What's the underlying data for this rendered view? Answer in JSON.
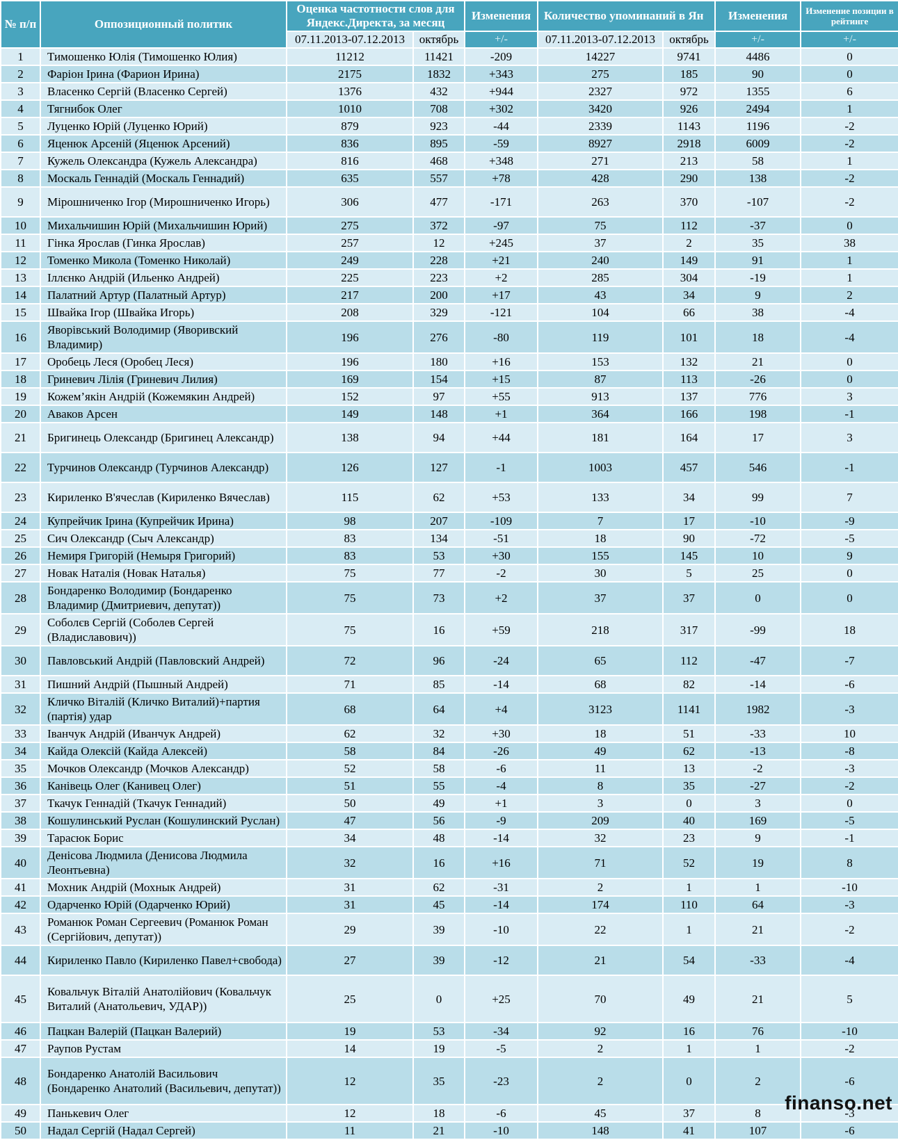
{
  "colors": {
    "header_bg": "#48a5be",
    "row_light": "#d9ecf4",
    "row_dark": "#b9dde9",
    "header_text": "#ffffff",
    "body_text": "#000000"
  },
  "watermark": "finanso.net",
  "header": {
    "rank": "№ п/п",
    "politician": "Оппозиционный политик",
    "freq_group": "Оценка частотности слов для Яндекс.Директа, за месяц",
    "changes_a": "Изменения",
    "mentions_group": "Количество упоминаний в Ян",
    "changes_b": "Изменения",
    "rating_group": "Изменение позиции в рейтинге",
    "period_a": "07.11.2013-07.12.2013",
    "october_a": "октябрь",
    "pm_a": "+/-",
    "period_b": "07.11.2013-07.12.2013",
    "october_b": "октябрь",
    "pm_b": "+/-",
    "pm_c": "+/-"
  },
  "rows": [
    {
      "n": "1",
      "name": "Тимошенко Юлія (Тимошенко Юлия)",
      "cells": [
        "11212",
        "11421",
        "-209",
        "14227",
        "9741",
        "4486",
        "0"
      ]
    },
    {
      "n": "2",
      "name": "Фаріон Ірина (Фарион Ирина)",
      "cells": [
        "2175",
        "1832",
        "+343",
        "275",
        "185",
        "90",
        "0"
      ]
    },
    {
      "n": "3",
      "name": "Власенко Сергій (Власенко Сергей)",
      "cells": [
        "1376",
        "432",
        "+944",
        "2327",
        "972",
        "1355",
        "6"
      ]
    },
    {
      "n": "4",
      "name": "Тягнибок Олег",
      "cells": [
        "1010",
        "708",
        "+302",
        "3420",
        "926",
        "2494",
        "1"
      ]
    },
    {
      "n": "5",
      "name": "Луценко Юрій (Луценко Юрий)",
      "cells": [
        "879",
        "923",
        "-44",
        "2339",
        "1143",
        "1196",
        "-2"
      ]
    },
    {
      "n": "6",
      "name": "Яценюк Арсеній (Яценюк Арсений)",
      "cells": [
        "836",
        "895",
        "-59",
        "8927",
        "2918",
        "6009",
        "-2"
      ]
    },
    {
      "n": "7",
      "name": "Кужель Олександра (Кужель Александра)",
      "cells": [
        "816",
        "468",
        "+348",
        "271",
        "213",
        "58",
        "1"
      ]
    },
    {
      "n": "8",
      "name": "Москаль Геннадій (Москаль Геннадий)",
      "cells": [
        "635",
        "557",
        "+78",
        "428",
        "290",
        "138",
        "-2"
      ]
    },
    {
      "n": "9",
      "name": "Мірошниченко Ігор (Мирошниченко Игорь)",
      "cells": [
        "306",
        "477",
        "-171",
        "263",
        "370",
        "-107",
        "-2"
      ],
      "tall": 1
    },
    {
      "n": "10",
      "name": "Михальчишин Юрій (Михальчишин Юрий)",
      "cells": [
        "275",
        "372",
        "-97",
        "75",
        "112",
        "-37",
        "0"
      ]
    },
    {
      "n": "11",
      "name": "Гінка Ярослав (Гинка Ярослав)",
      "cells": [
        "257",
        "12",
        "+245",
        "37",
        "2",
        "35",
        "38"
      ]
    },
    {
      "n": "12",
      "name": "Томенко Микола  (Томенко Николай)",
      "cells": [
        "249",
        "228",
        "+21",
        "240",
        "149",
        "91",
        "1"
      ]
    },
    {
      "n": "13",
      "name": "Іллєнко Андрій (Ильенко Андрей)",
      "cells": [
        "225",
        "223",
        "+2",
        "285",
        "304",
        "-19",
        "1"
      ]
    },
    {
      "n": "14",
      "name": "Палатний Артур (Палатный Артур)",
      "cells": [
        "217",
        "200",
        "+17",
        "43",
        "34",
        "9",
        "2"
      ]
    },
    {
      "n": "15",
      "name": "Швайка Ігор (Швайка Игорь)",
      "cells": [
        "208",
        "329",
        "-121",
        "104",
        "66",
        "38",
        "-4"
      ]
    },
    {
      "n": "16",
      "name": "Яворівський Володимир (Яворивский Владимир)",
      "cells": [
        "196",
        "276",
        "-80",
        "119",
        "101",
        "18",
        "-4"
      ]
    },
    {
      "n": "17",
      "name": "Оробець Леся  (Оробец Леся)",
      "cells": [
        "196",
        "180",
        "+16",
        "153",
        "132",
        "21",
        "0"
      ]
    },
    {
      "n": "18",
      "name": "Гриневич Лілія (Гриневич Лилия)",
      "cells": [
        "169",
        "154",
        "+15",
        "87",
        "113",
        "-26",
        "0"
      ]
    },
    {
      "n": "19",
      "name": "Кожем’якін Андрій (Кожемякин Андрей)",
      "cells": [
        "152",
        "97",
        "+55",
        "913",
        "137",
        "776",
        "3"
      ]
    },
    {
      "n": "20",
      "name": "Аваков Арсен",
      "cells": [
        "149",
        "148",
        "+1",
        "364",
        "166",
        "198",
        "-1"
      ]
    },
    {
      "n": "21",
      "name": "Бригинець Олександр (Бригинец Александр)",
      "cells": [
        "138",
        "94",
        "+44",
        "181",
        "164",
        "17",
        "3"
      ],
      "tall": 1
    },
    {
      "n": "22",
      "name": "Турчинов Олександр (Турчинов Александр)",
      "cells": [
        "126",
        "127",
        "-1",
        "1003",
        "457",
        "546",
        "-1"
      ],
      "tall": 1
    },
    {
      "n": "23",
      "name": "Кириленко В'ячеслав (Кириленко Вячеслав)",
      "cells": [
        "115",
        "62",
        "+53",
        "133",
        "34",
        "99",
        "7"
      ],
      "tall": 1
    },
    {
      "n": "24",
      "name": "Купрейчик Ірина (Купрейчик Ирина)",
      "cells": [
        "98",
        "207",
        "-109",
        "7",
        "17",
        "-10",
        "-9"
      ]
    },
    {
      "n": "25",
      "name": "Сич Олександр (Сыч Александр)",
      "cells": [
        "83",
        "134",
        "-51",
        "18",
        "90",
        "-72",
        "-5"
      ]
    },
    {
      "n": "26",
      "name": "Немиря Григорій (Немыря Григорий)",
      "cells": [
        "83",
        "53",
        "+30",
        "155",
        "145",
        "10",
        "9"
      ]
    },
    {
      "n": "27",
      "name": "Новак Наталія (Новак Наталья)",
      "cells": [
        "75",
        "77",
        "-2",
        "30",
        "5",
        "25",
        "0"
      ]
    },
    {
      "n": "28",
      "name": "Бондаренко Володимир  (Бондаренко Владимир (Дмитриевич, депутат))",
      "cells": [
        "75",
        "73",
        "+2",
        "37",
        "37",
        "0",
        "0"
      ]
    },
    {
      "n": "29",
      "name": "Соболєв Сергій  (Соболев Сергей (Владиславович))",
      "cells": [
        "75",
        "16",
        "+59",
        "218",
        "317",
        "-99",
        "18"
      ]
    },
    {
      "n": "30",
      "name": "Павловський Андрій  (Павловский Андрей)",
      "cells": [
        "72",
        "96",
        "-24",
        "65",
        "112",
        "-47",
        "-7"
      ],
      "tall": 1
    },
    {
      "n": "31",
      "name": "Пишний Андрій (Пышный Андрей)",
      "cells": [
        "71",
        "85",
        "-14",
        "68",
        "82",
        "-14",
        "-6"
      ]
    },
    {
      "n": "32",
      "name": "Кличко Віталій (Кличко Виталий)+партия (партія) удар",
      "cells": [
        "68",
        "64",
        "+4",
        "3123",
        "1141",
        "1982",
        "-3"
      ]
    },
    {
      "n": "33",
      "name": "Іванчук Андрій  (Иванчук Андрей)",
      "cells": [
        "62",
        "32",
        "+30",
        "18",
        "51",
        "-33",
        "10"
      ]
    },
    {
      "n": "34",
      "name": "Кайда Олексій (Кайда Алексей)",
      "cells": [
        "58",
        "84",
        "-26",
        "49",
        "62",
        "-13",
        "-8"
      ]
    },
    {
      "n": "35",
      "name": "Мочков Олександр (Мочков Александр)",
      "cells": [
        "52",
        "58",
        "-6",
        "11",
        "13",
        "-2",
        "-3"
      ]
    },
    {
      "n": "36",
      "name": "Канівець Олег (Канивец Олег)",
      "cells": [
        "51",
        "55",
        "-4",
        "8",
        "35",
        "-27",
        "-2"
      ]
    },
    {
      "n": "37",
      "name": "Ткачук Геннадій (Ткачук Геннадий)",
      "cells": [
        "50",
        "49",
        "+1",
        "3",
        "0",
        "3",
        "0"
      ]
    },
    {
      "n": "38",
      "name": "Кошулинський Руслан (Кошулинский Руслан)",
      "cells": [
        "47",
        "56",
        "-9",
        "209",
        "40",
        "169",
        "-5"
      ]
    },
    {
      "n": "39",
      "name": "Тарасюк Борис",
      "cells": [
        "34",
        "48",
        "-14",
        "32",
        "23",
        "9",
        "-1"
      ]
    },
    {
      "n": "40",
      "name": "Денісова Людмила (Денисова Людмила Леонтьевна)",
      "cells": [
        "32",
        "16",
        "+16",
        "71",
        "52",
        "19",
        "8"
      ]
    },
    {
      "n": "41",
      "name": "Мохник Андрій (Мохнык Андрей)",
      "cells": [
        "31",
        "62",
        "-31",
        "2",
        "1",
        "1",
        "-10"
      ]
    },
    {
      "n": "42",
      "name": "Одарченко Юрій (Одарченко Юрий)",
      "cells": [
        "31",
        "45",
        "-14",
        "174",
        "110",
        "64",
        "-3"
      ]
    },
    {
      "n": "43",
      "name": "Романюк Роман Сергеевич (Романюк Роман (Сергійович, депутат))",
      "cells": [
        "29",
        "39",
        "-10",
        "22",
        "1",
        "21",
        "-2"
      ]
    },
    {
      "n": "44",
      "name": "Кириленко Павло (Кириленко Павел+свобода)",
      "cells": [
        "27",
        "39",
        "-12",
        "21",
        "54",
        "-33",
        "-4"
      ],
      "tall": 1
    },
    {
      "n": "45",
      "name": "Ковальчук Віталій Анатолійович (Ковальчук Виталий (Анатольевич, УДАР))",
      "cells": [
        "25",
        "0",
        "+25",
        "70",
        "49",
        "21",
        "5"
      ],
      "tall": 2
    },
    {
      "n": "46",
      "name": "Пацкан Валерій (Пацкан Валерий)",
      "cells": [
        "19",
        "53",
        "-34",
        "92",
        "16",
        "76",
        "-10"
      ]
    },
    {
      "n": "47",
      "name": "Раупов Рустам",
      "cells": [
        "14",
        "19",
        "-5",
        "2",
        "1",
        "1",
        "-2"
      ]
    },
    {
      "n": "48",
      "name": "Бондаренко Анатолій Васильович (Бондаренко Анатолий (Васильевич, депутат))",
      "cells": [
        "12",
        "35",
        "-23",
        "2",
        "0",
        "2",
        "-6"
      ],
      "tall": 2
    },
    {
      "n": "49",
      "name": "Панькевич Олег",
      "cells": [
        "12",
        "18",
        "-6",
        "45",
        "37",
        "8",
        "-3"
      ]
    },
    {
      "n": "50",
      "name": "Надал Сергій (Надал Сергей)",
      "cells": [
        "11",
        "21",
        "-10",
        "148",
        "41",
        "107",
        "-6"
      ]
    }
  ]
}
